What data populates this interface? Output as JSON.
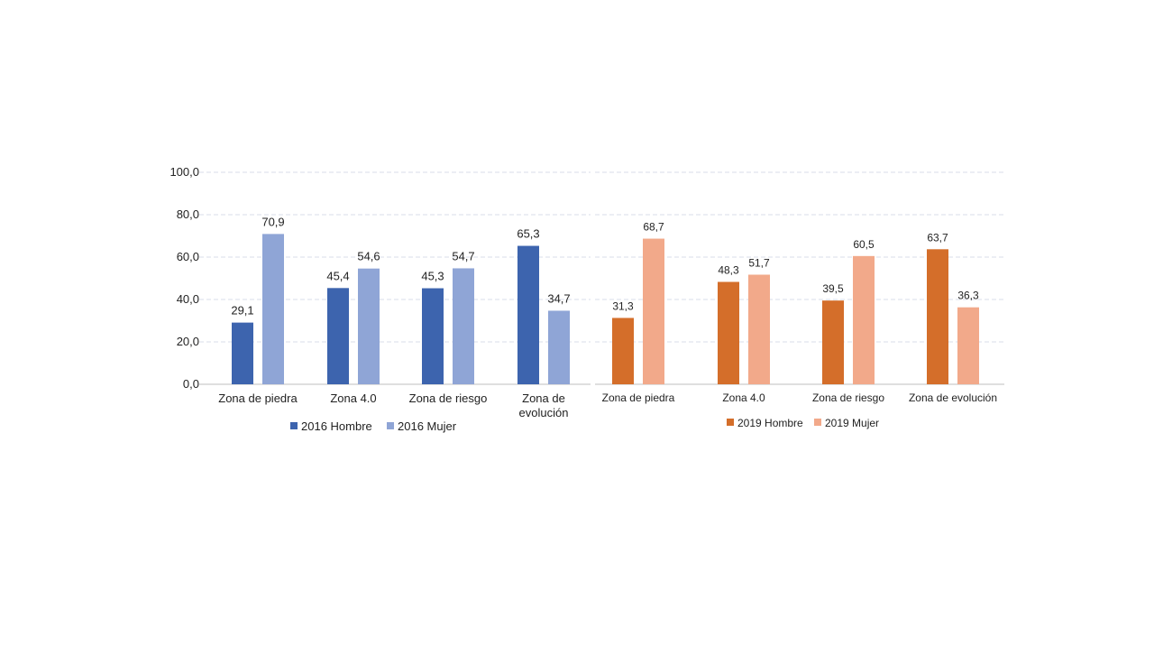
{
  "chart_data": [
    {
      "type": "bar",
      "categories": [
        "Zona de piedra",
        "Zona 4.0",
        "Zona de riesgo",
        "Zona de evolución"
      ],
      "category_labels": [
        [
          "Zona de piedra"
        ],
        [
          "Zona 4.0"
        ],
        [
          "Zona de riesgo"
        ],
        [
          "Zona de",
          "evolución"
        ]
      ],
      "series": [
        {
          "name": "2016 Hombre",
          "color": "#3D64AE",
          "values": [
            29.1,
            45.4,
            45.3,
            65.3
          ],
          "labels": [
            "29,1",
            "45,4",
            "45,3",
            "65,3"
          ]
        },
        {
          "name": "2016 Mujer",
          "color": "#8FA5D6",
          "values": [
            70.9,
            54.6,
            54.7,
            34.7
          ],
          "labels": [
            "70,9",
            "54,6",
            "54,7",
            "34,7"
          ]
        }
      ],
      "ylim": [
        0,
        100
      ],
      "yticks": [
        "0,0",
        "20,0",
        "40,0",
        "60,0",
        "80,0",
        "100,0"
      ],
      "grid": true,
      "legend_position": "bottom"
    },
    {
      "type": "bar",
      "categories": [
        "Zona de piedra",
        "Zona 4.0",
        "Zona de riesgo",
        "Zona de evolución"
      ],
      "category_labels": [
        [
          "Zona de piedra"
        ],
        [
          "Zona 4.0"
        ],
        [
          "Zona de riesgo"
        ],
        [
          "Zona de evolución"
        ]
      ],
      "series": [
        {
          "name": "2019 Hombre",
          "color": "#D46E2A",
          "values": [
            31.3,
            48.3,
            39.5,
            63.7
          ],
          "labels": [
            "31,3",
            "48,3",
            "39,5",
            "63,7"
          ]
        },
        {
          "name": "2019 Mujer",
          "color": "#F2A98A",
          "values": [
            68.7,
            51.7,
            60.5,
            36.3
          ],
          "labels": [
            "68,7",
            "51,7",
            "60,5",
            "36,3"
          ]
        }
      ],
      "ylim": [
        0,
        100
      ],
      "grid": true,
      "legend_position": "bottom"
    }
  ]
}
